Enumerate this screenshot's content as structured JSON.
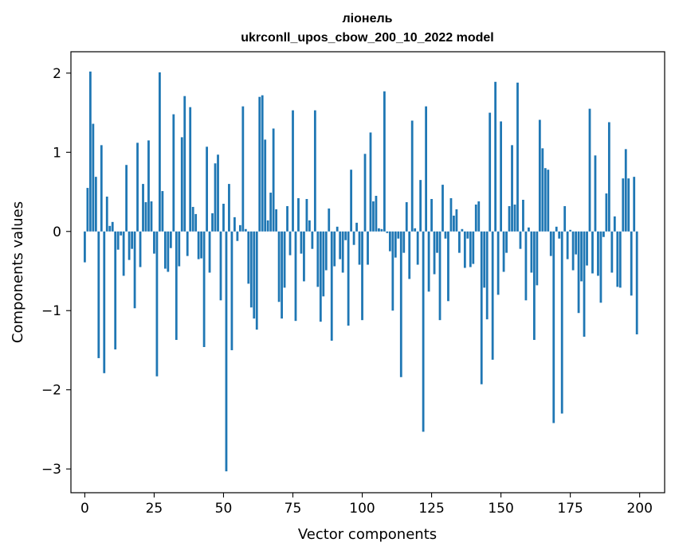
{
  "chart_data": {
    "type": "bar",
    "title_line1": "ліонель",
    "title_line2": "ukrconll_upos_cbow_200_10_2022 model",
    "xlabel": "Vector components",
    "ylabel": "Components values",
    "xlim": [
      -5,
      209
    ],
    "ylim": [
      -3.3,
      2.27
    ],
    "grid": false,
    "bar_color": "#1f77b4",
    "x_ticks": [
      {
        "value": 0,
        "label": "0"
      },
      {
        "value": 25,
        "label": "25"
      },
      {
        "value": 50,
        "label": "50"
      },
      {
        "value": 75,
        "label": "75"
      },
      {
        "value": 100,
        "label": "100"
      },
      {
        "value": 125,
        "label": "125"
      },
      {
        "value": 150,
        "label": "150"
      },
      {
        "value": 175,
        "label": "175"
      },
      {
        "value": 200,
        "label": "200"
      }
    ],
    "y_ticks": [
      {
        "value": 2,
        "label": "2"
      },
      {
        "value": 1,
        "label": "1"
      },
      {
        "value": 0,
        "label": "0"
      },
      {
        "value": -1,
        "label": "−1"
      },
      {
        "value": -2,
        "label": "−2"
      },
      {
        "value": -3,
        "label": "−3"
      }
    ],
    "values": [
      -0.39,
      0.55,
      2.02,
      1.36,
      0.69,
      -1.6,
      1.09,
      -1.79,
      0.44,
      0.07,
      0.12,
      -1.49,
      -0.23,
      -0.05,
      -0.56,
      0.84,
      -0.36,
      -0.22,
      -0.97,
      1.12,
      -0.45,
      0.6,
      0.37,
      1.15,
      0.38,
      -0.28,
      -1.83,
      2.01,
      0.51,
      -0.47,
      -0.51,
      -0.21,
      1.48,
      -1.37,
      -0.44,
      1.19,
      1.71,
      -0.31,
      1.57,
      0.31,
      0.22,
      -0.35,
      -0.34,
      -1.46,
      1.07,
      -0.52,
      0.23,
      0.86,
      0.97,
      -0.87,
      0.35,
      -3.03,
      0.6,
      -1.5,
      0.18,
      -0.12,
      0.08,
      1.58,
      0.03,
      -0.66,
      -0.96,
      -1.1,
      -1.24,
      1.7,
      1.72,
      1.16,
      0.14,
      0.49,
      1.3,
      0.28,
      -0.89,
      -1.1,
      -0.71,
      0.32,
      -0.3,
      1.53,
      -1.13,
      0.42,
      -0.28,
      -0.63,
      0.41,
      0.14,
      -0.22,
      1.53,
      -0.7,
      -1.14,
      -0.82,
      -0.49,
      0.29,
      -1.38,
      -0.44,
      0.06,
      -0.35,
      -0.52,
      -0.11,
      -1.19,
      0.78,
      -0.17,
      0.11,
      -0.42,
      -1.12,
      0.98,
      -0.42,
      1.25,
      0.38,
      0.45,
      0.04,
      0.03,
      1.77,
      -0.02,
      -0.25,
      -1.0,
      -0.33,
      -0.09,
      -1.84,
      -0.27,
      0.37,
      -0.6,
      1.4,
      0.04,
      -0.42,
      0.65,
      -2.53,
      1.58,
      -0.76,
      0.41,
      -0.54,
      -0.27,
      -1.12,
      0.59,
      -0.09,
      -0.88,
      0.42,
      0.2,
      0.28,
      -0.27,
      0.03,
      -0.46,
      -0.09,
      -0.45,
      -0.41,
      0.34,
      0.38,
      -1.93,
      -0.71,
      -1.11,
      1.5,
      -1.62,
      1.89,
      -0.8,
      1.39,
      -0.51,
      -0.27,
      0.32,
      1.09,
      0.34,
      1.88,
      -0.22,
      0.4,
      -0.87,
      0.05,
      -0.52,
      -1.37,
      -0.68,
      1.41,
      1.05,
      0.8,
      0.78,
      -0.31,
      -2.42,
      0.06,
      -0.09,
      -2.3,
      0.32,
      -0.35,
      0.02,
      -0.49,
      -0.29,
      -1.03,
      -0.63,
      -1.33,
      -0.43,
      1.55,
      -0.53,
      0.96,
      -0.56,
      -0.9,
      -0.07,
      0.48,
      1.38,
      -0.52,
      0.19,
      -0.7,
      -0.71,
      0.67,
      1.04,
      0.67,
      -0.81,
      0.69,
      -1.3
    ]
  }
}
